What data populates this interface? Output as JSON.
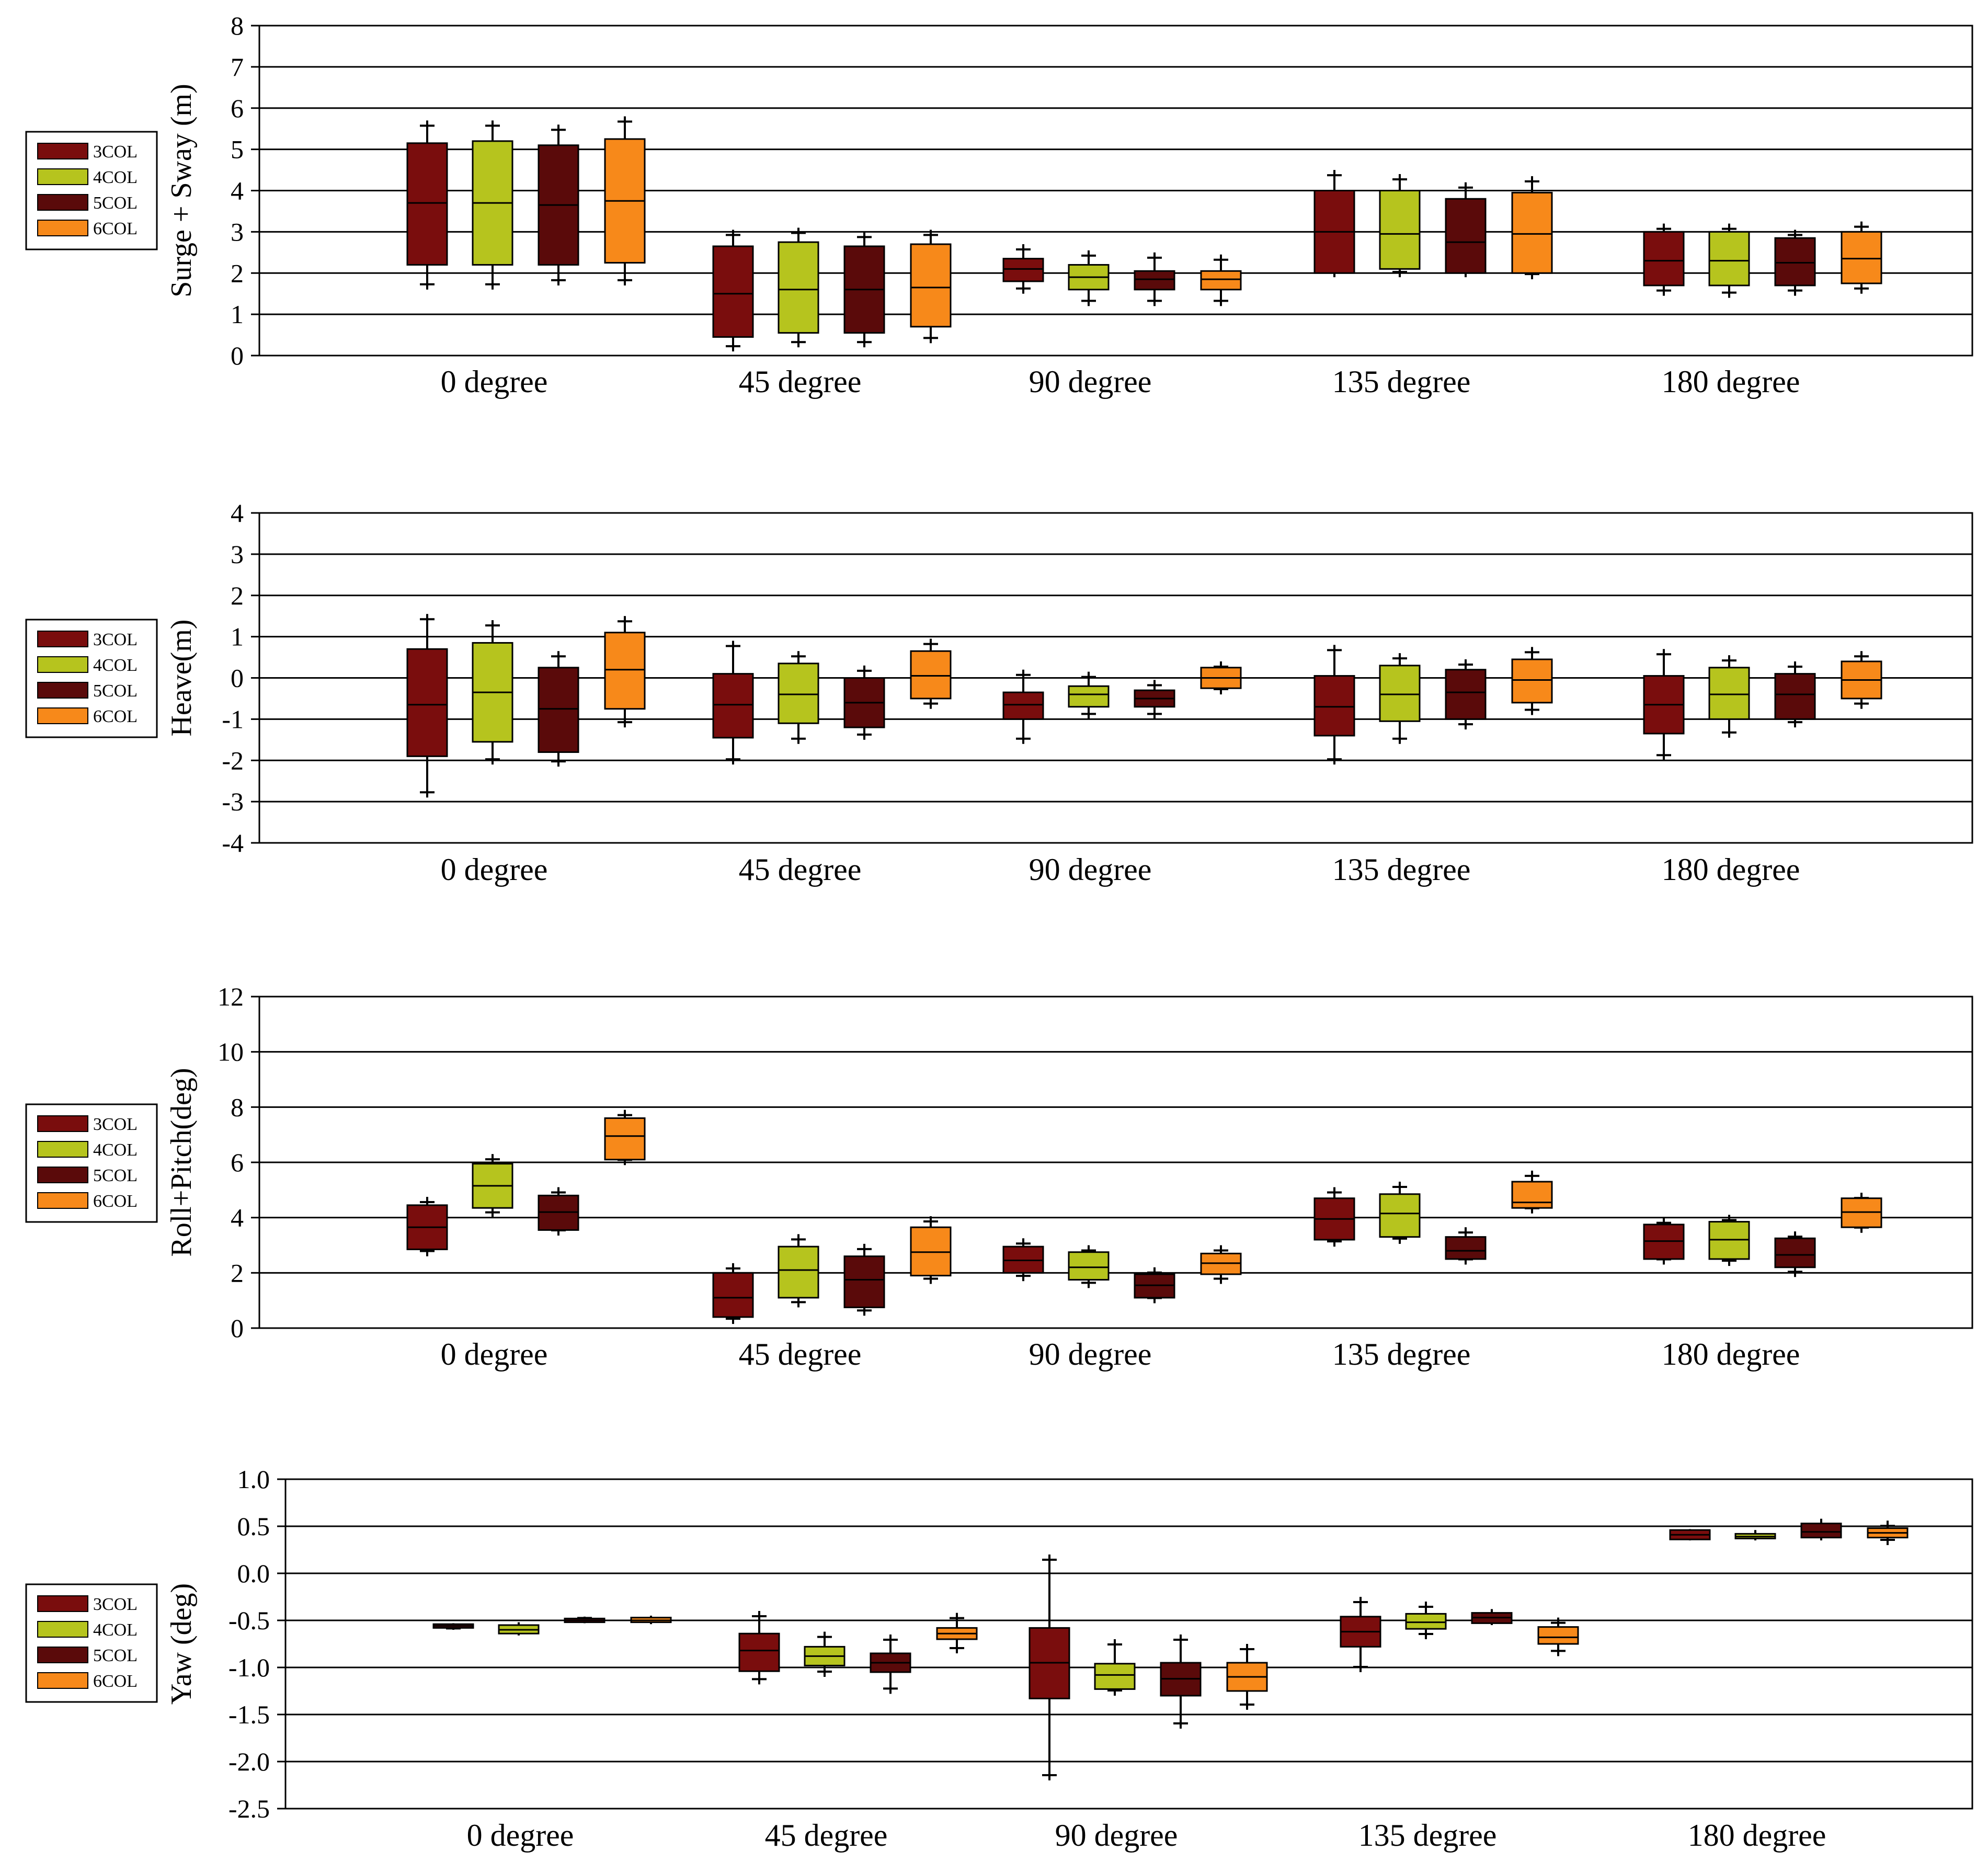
{
  "colors": {
    "3COL": "#7a0d0d",
    "4COL": "#b6c41e",
    "5COL": "#5a0a0a",
    "6COL": "#f7891a"
  },
  "chart_data": [
    {
      "type": "box",
      "ylabel": "Surge + Sway (m)",
      "ylim": [
        0,
        8
      ],
      "yticks": [
        "0",
        "1",
        "2",
        "3",
        "4",
        "5",
        "6",
        "7",
        "8"
      ],
      "categories": [
        "0 degree",
        "45 degree",
        "90 degree",
        "135 degree",
        "180 degree"
      ],
      "legend": [
        "3COL",
        "4COL",
        "5COL",
        "6COL"
      ],
      "series": [
        {
          "name": "3COL",
          "boxes": [
            [
              1.6,
              2.2,
              3.7,
              5.15,
              5.7
            ],
            [
              0.1,
              0.45,
              1.5,
              2.65,
              3.05
            ],
            [
              1.5,
              1.8,
              2.1,
              2.35,
              2.7
            ],
            [
              1.9,
              2.0,
              3.0,
              4.0,
              4.5
            ],
            [
              1.45,
              1.7,
              2.3,
              3.0,
              3.2
            ]
          ]
        },
        {
          "name": "4COL",
          "boxes": [
            [
              1.6,
              2.2,
              3.7,
              5.2,
              5.7
            ],
            [
              0.2,
              0.55,
              1.6,
              2.75,
              3.1
            ],
            [
              1.2,
              1.6,
              1.9,
              2.2,
              2.55
            ],
            [
              1.9,
              2.1,
              2.95,
              4.0,
              4.4
            ],
            [
              1.4,
              1.7,
              2.3,
              3.0,
              3.2
            ]
          ]
        },
        {
          "name": "5COL",
          "boxes": [
            [
              1.7,
              2.2,
              3.65,
              5.1,
              5.6
            ],
            [
              0.2,
              0.55,
              1.6,
              2.65,
              3.0
            ],
            [
              1.2,
              1.6,
              1.85,
              2.05,
              2.5
            ],
            [
              1.9,
              2.0,
              2.75,
              3.8,
              4.2
            ],
            [
              1.45,
              1.7,
              2.25,
              2.85,
              3.05
            ]
          ]
        },
        {
          "name": "6COL",
          "boxes": [
            [
              1.7,
              2.25,
              3.75,
              5.25,
              5.8
            ],
            [
              0.3,
              0.7,
              1.65,
              2.7,
              3.05
            ],
            [
              1.2,
              1.6,
              1.85,
              2.05,
              2.45
            ],
            [
              1.85,
              2.0,
              2.95,
              3.95,
              4.35
            ],
            [
              1.5,
              1.75,
              2.35,
              3.0,
              3.25
            ]
          ]
        }
      ]
    },
    {
      "type": "box",
      "ylabel": "Heave(m)",
      "ylim": [
        -4,
        4
      ],
      "yticks": [
        "-4",
        "-3",
        "-2",
        "-1",
        "0",
        "1",
        "2",
        "3",
        "4"
      ],
      "categories": [
        "0 degree",
        "45 degree",
        "90 degree",
        "135 degree",
        "180 degree"
      ],
      "legend": [
        "3COL",
        "4COL",
        "5COL",
        "6COL"
      ],
      "series": [
        {
          "name": "3COL",
          "boxes": [
            [
              -2.9,
              -1.9,
              -0.65,
              0.7,
              1.55
            ],
            [
              -2.1,
              -1.45,
              -0.65,
              0.1,
              0.9
            ],
            [
              -1.6,
              -1.0,
              -0.65,
              -0.35,
              0.2
            ],
            [
              -2.1,
              -1.4,
              -0.7,
              0.05,
              0.8
            ],
            [
              -2.0,
              -1.35,
              -0.65,
              0.05,
              0.7
            ]
          ]
        },
        {
          "name": "4COL",
          "boxes": [
            [
              -2.1,
              -1.55,
              -0.35,
              0.85,
              1.4
            ],
            [
              -1.6,
              -1.1,
              -0.4,
              0.35,
              0.65
            ],
            [
              -1.0,
              -0.7,
              -0.4,
              -0.2,
              0.15
            ],
            [
              -1.6,
              -1.05,
              -0.4,
              0.3,
              0.6
            ],
            [
              -1.45,
              -1.0,
              -0.4,
              0.25,
              0.55
            ]
          ]
        },
        {
          "name": "5COL",
          "boxes": [
            [
              -2.15,
              -1.8,
              -0.75,
              0.25,
              0.65
            ],
            [
              -1.5,
              -1.2,
              -0.6,
              0.0,
              0.3
            ],
            [
              -1.0,
              -0.7,
              -0.5,
              -0.3,
              -0.05
            ],
            [
              -1.25,
              -1.0,
              -0.35,
              0.2,
              0.45
            ],
            [
              -1.2,
              -1.0,
              -0.4,
              0.1,
              0.4
            ]
          ]
        },
        {
          "name": "6COL",
          "boxes": [
            [
              -1.2,
              -0.75,
              0.2,
              1.1,
              1.5
            ],
            [
              -0.75,
              -0.5,
              0.05,
              0.65,
              0.95
            ],
            [
              -0.4,
              -0.25,
              0.0,
              0.25,
              0.4
            ],
            [
              -0.9,
              -0.6,
              -0.05,
              0.45,
              0.75
            ],
            [
              -0.75,
              -0.5,
              -0.05,
              0.4,
              0.65
            ]
          ]
        }
      ]
    },
    {
      "type": "box",
      "ylabel": "Roll+Pitch(deg)",
      "ylim": [
        0,
        12
      ],
      "yticks": [
        "0",
        "2",
        "4",
        "6",
        "8",
        "10",
        "12"
      ],
      "categories": [
        "0 degree",
        "45 degree",
        "90 degree",
        "135 degree",
        "180 degree"
      ],
      "legend": [
        "3COL",
        "4COL",
        "5COL",
        "6COL"
      ],
      "series": [
        {
          "name": "3COL",
          "boxes": [
            [
              2.6,
              2.85,
              3.65,
              4.45,
              4.75
            ],
            [
              0.15,
              0.4,
              1.1,
              2.0,
              2.35
            ],
            [
              1.7,
              2.0,
              2.45,
              2.95,
              3.25
            ],
            [
              2.95,
              3.2,
              3.95,
              4.7,
              5.1
            ],
            [
              2.3,
              2.5,
              3.15,
              3.75,
              4.0
            ]
          ]
        },
        {
          "name": "4COL",
          "boxes": [
            [
              4.0,
              4.35,
              5.15,
              5.95,
              6.3
            ],
            [
              0.75,
              1.1,
              2.1,
              2.95,
              3.4
            ],
            [
              1.45,
              1.75,
              2.2,
              2.75,
              3.0
            ],
            [
              3.05,
              3.3,
              4.15,
              4.85,
              5.3
            ],
            [
              2.25,
              2.5,
              3.2,
              3.85,
              4.1
            ]
          ]
        },
        {
          "name": "5COL",
          "boxes": [
            [
              3.35,
              3.55,
              4.2,
              4.8,
              5.1
            ],
            [
              0.45,
              0.75,
              1.75,
              2.6,
              3.05
            ],
            [
              0.9,
              1.1,
              1.55,
              1.95,
              2.2
            ],
            [
              2.3,
              2.5,
              2.8,
              3.3,
              3.65
            ],
            [
              1.85,
              2.2,
              2.65,
              3.25,
              3.5
            ]
          ]
        },
        {
          "name": "6COL",
          "boxes": [
            [
              5.9,
              6.1,
              6.95,
              7.6,
              7.9
            ],
            [
              1.6,
              1.9,
              2.75,
              3.65,
              4.05
            ],
            [
              1.6,
              1.95,
              2.35,
              2.7,
              3.0
            ],
            [
              4.15,
              4.35,
              4.55,
              5.3,
              5.7
            ],
            [
              3.45,
              3.65,
              4.2,
              4.7,
              4.9
            ]
          ]
        }
      ]
    },
    {
      "type": "box",
      "ylabel": "Yaw (deg)",
      "ylim": [
        -2.5,
        1.0
      ],
      "yticks": [
        "-2.5",
        "-2.0",
        "-1.5",
        "-1.0",
        "-0.5",
        "0.0",
        "0.5",
        "1.0"
      ],
      "categories": [
        "0 degree",
        "45 degree",
        "90 degree",
        "135 degree",
        "180 degree"
      ],
      "legend": [
        "3COL",
        "4COL",
        "5COL",
        "6COL"
      ],
      "series": [
        {
          "name": "3COL",
          "boxes": [
            [
              -0.6,
              -0.58,
              -0.56,
              -0.54,
              -0.53
            ],
            [
              -1.18,
              -1.04,
              -0.82,
              -0.64,
              -0.4
            ],
            [
              -2.2,
              -1.33,
              -0.95,
              -0.58,
              0.2
            ],
            [
              -1.05,
              -0.78,
              -0.62,
              -0.46,
              -0.25
            ],
            [
              0.35,
              0.36,
              0.41,
              0.46,
              0.47
            ]
          ]
        },
        {
          "name": "4COL",
          "boxes": [
            [
              -0.66,
              -0.64,
              -0.6,
              -0.55,
              -0.52
            ],
            [
              -1.1,
              -0.98,
              -0.88,
              -0.78,
              -0.62
            ],
            [
              -1.3,
              -1.23,
              -1.08,
              -0.96,
              -0.7
            ],
            [
              -0.7,
              -0.59,
              -0.52,
              -0.43,
              -0.3
            ],
            [
              0.35,
              0.37,
              0.39,
              0.42,
              0.46
            ]
          ]
        },
        {
          "name": "5COL",
          "boxes": [
            [
              -0.53,
              -0.52,
              -0.5,
              -0.48,
              -0.46
            ],
            [
              -1.28,
              -1.05,
              -0.95,
              -0.85,
              -0.65
            ],
            [
              -1.65,
              -1.3,
              -1.12,
              -0.95,
              -0.65
            ],
            [
              -0.55,
              -0.53,
              -0.47,
              -0.42,
              -0.38
            ],
            [
              0.35,
              0.38,
              0.44,
              0.53,
              0.58
            ]
          ]
        },
        {
          "name": "6COL",
          "boxes": [
            [
              -0.54,
              -0.52,
              -0.5,
              -0.47,
              -0.45
            ],
            [
              -0.85,
              -0.7,
              -0.64,
              -0.58,
              -0.42
            ],
            [
              -1.45,
              -1.25,
              -1.1,
              -0.95,
              -0.75
            ],
            [
              -0.88,
              -0.75,
              -0.68,
              -0.57,
              -0.47
            ],
            [
              0.3,
              0.38,
              0.43,
              0.48,
              0.56
            ]
          ]
        }
      ]
    }
  ]
}
